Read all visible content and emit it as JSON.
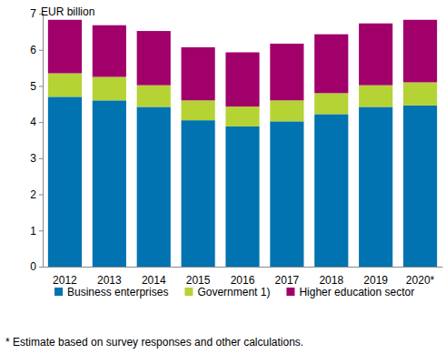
{
  "chart_data": {
    "type": "bar",
    "stacked": true,
    "y_label": "EUR billion",
    "footnote": "* Estimate based on survey responses and other calculations.",
    "categories": [
      "2012",
      "2013",
      "2014",
      "2015",
      "2016",
      "2017",
      "2018",
      "2019",
      "2020*"
    ],
    "series": [
      {
        "name": "Business enterprises",
        "color": "#0073b0",
        "values": [
          4.7,
          4.6,
          4.42,
          4.05,
          3.88,
          4.02,
          4.22,
          4.42,
          4.46
        ]
      },
      {
        "name": "Government 1)",
        "color": "#b5d334",
        "values": [
          0.65,
          0.65,
          0.6,
          0.55,
          0.55,
          0.58,
          0.58,
          0.6,
          0.64
        ]
      },
      {
        "name": "Higher education sector",
        "color": "#a1006b",
        "values": [
          1.48,
          1.43,
          1.5,
          1.47,
          1.5,
          1.57,
          1.63,
          1.71,
          1.73
        ]
      }
    ],
    "ylim": [
      0,
      7
    ],
    "yticks": [
      0,
      1,
      2,
      3,
      4,
      5,
      6,
      7
    ],
    "grid": false,
    "legend": "bottom"
  }
}
